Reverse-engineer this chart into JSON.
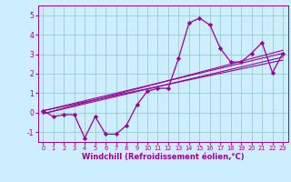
{
  "xlabel": "Windchill (Refroidissement éolien,°C)",
  "xlim": [
    -0.5,
    23.5
  ],
  "ylim": [
    -1.5,
    5.5
  ],
  "yticks": [
    -1,
    0,
    1,
    2,
    3,
    4,
    5
  ],
  "xticks": [
    0,
    1,
    2,
    3,
    4,
    5,
    6,
    7,
    8,
    9,
    10,
    11,
    12,
    13,
    14,
    15,
    16,
    17,
    18,
    19,
    20,
    21,
    22,
    23
  ],
  "background_color": "#cceeff",
  "line_color": "#990099",
  "grid_color": "#99cccc",
  "main_data_x": [
    0,
    1,
    2,
    3,
    4,
    5,
    6,
    7,
    8,
    9,
    10,
    11,
    12,
    13,
    14,
    15,
    16,
    17,
    18,
    19,
    20,
    21,
    22,
    23
  ],
  "main_data_y": [
    0.1,
    -0.2,
    -0.1,
    -0.1,
    -1.3,
    -0.2,
    -1.1,
    -1.1,
    -0.65,
    0.4,
    1.1,
    1.25,
    1.25,
    2.8,
    4.6,
    4.85,
    4.5,
    3.3,
    2.6,
    2.6,
    3.05,
    3.6,
    2.05,
    3.05
  ],
  "reg_line1_x": [
    0,
    23
  ],
  "reg_line1_y": [
    -0.05,
    3.2
  ],
  "reg_line2_x": [
    0,
    23
  ],
  "reg_line2_y": [
    0.1,
    3.05
  ],
  "reg_line3_x": [
    0,
    23
  ],
  "reg_line3_y": [
    -0.05,
    2.85
  ],
  "reg_line4_x": [
    0,
    23
  ],
  "reg_line4_y": [
    0.1,
    2.7
  ]
}
